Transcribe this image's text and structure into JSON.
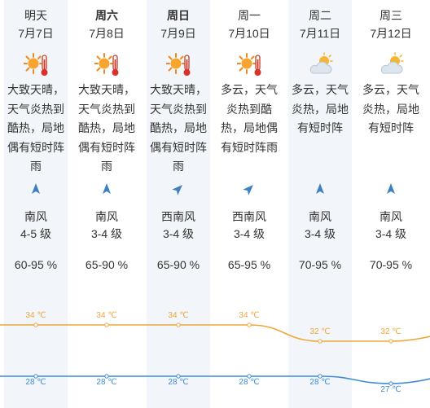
{
  "days": [
    {
      "day": "明天",
      "date": "7月7日",
      "bold": false,
      "icon": "sunny-hot-icon",
      "desc": "大致天晴，天气炎热到酷热，局地偶有短时阵雨",
      "wind_arrow_rotation": 0,
      "wind_dir": "南风",
      "wind_level": "4-5 级",
      "humidity": "60-95 %",
      "high": "34 ℃",
      "low": "28 ℃"
    },
    {
      "day": "周六",
      "date": "7月8日",
      "bold": true,
      "icon": "sunny-hot-icon",
      "desc": "大致天晴，天气炎热到酷热，局地偶有短时阵雨",
      "wind_arrow_rotation": 0,
      "wind_dir": "南风",
      "wind_level": "3-4 级",
      "humidity": "65-90 %",
      "high": "34 ℃",
      "low": "28 ℃"
    },
    {
      "day": "周日",
      "date": "7月9日",
      "bold": true,
      "icon": "sunny-hot-icon",
      "desc": "大致天晴，天气炎热到酷热，局地偶有短时阵雨",
      "wind_arrow_rotation": 45,
      "wind_dir": "西南风",
      "wind_level": "3-4 级",
      "humidity": "65-90 %",
      "high": "34 ℃",
      "low": "28 ℃"
    },
    {
      "day": "周一",
      "date": "7月10日",
      "bold": false,
      "icon": "sunny-hot-icon",
      "desc": "多云，天气炎热到酷热，局地偶有短时阵雨",
      "wind_arrow_rotation": 45,
      "wind_dir": "西南风",
      "wind_level": "3-4 级",
      "humidity": "65-95 %",
      "high": "34 ℃",
      "low": "28 ℃"
    },
    {
      "day": "周二",
      "date": "7月11日",
      "bold": false,
      "icon": "cloudy-sun-icon",
      "desc": "多云，天气炎热，局地有短时阵",
      "wind_arrow_rotation": 0,
      "wind_dir": "南风",
      "wind_level": "3-4 级",
      "humidity": "70-95 %",
      "high": "32 ℃",
      "low": "28 ℃"
    },
    {
      "day": "周三",
      "date": "7月12日",
      "bold": false,
      "icon": "cloudy-sun-icon",
      "desc": "多云，天气炎热，局地有短时阵",
      "wind_arrow_rotation": 0,
      "wind_dir": "南风",
      "wind_level": "3-4 级",
      "humidity": "70-95 %",
      "high": "32 ℃",
      "low": "27 ℃"
    }
  ],
  "chart_data": {
    "type": "line",
    "categories": [
      "7月7日",
      "7月8日",
      "7月9日",
      "7月10日",
      "7月11日",
      "7月12日"
    ],
    "series": [
      {
        "values": [
          34,
          34,
          34,
          34,
          32,
          32
        ],
        "color": "#f0a63a"
      },
      {
        "values": [
          28,
          28,
          28,
          28,
          28,
          27
        ],
        "color": "#3f8bd6"
      }
    ],
    "units": "℃"
  }
}
